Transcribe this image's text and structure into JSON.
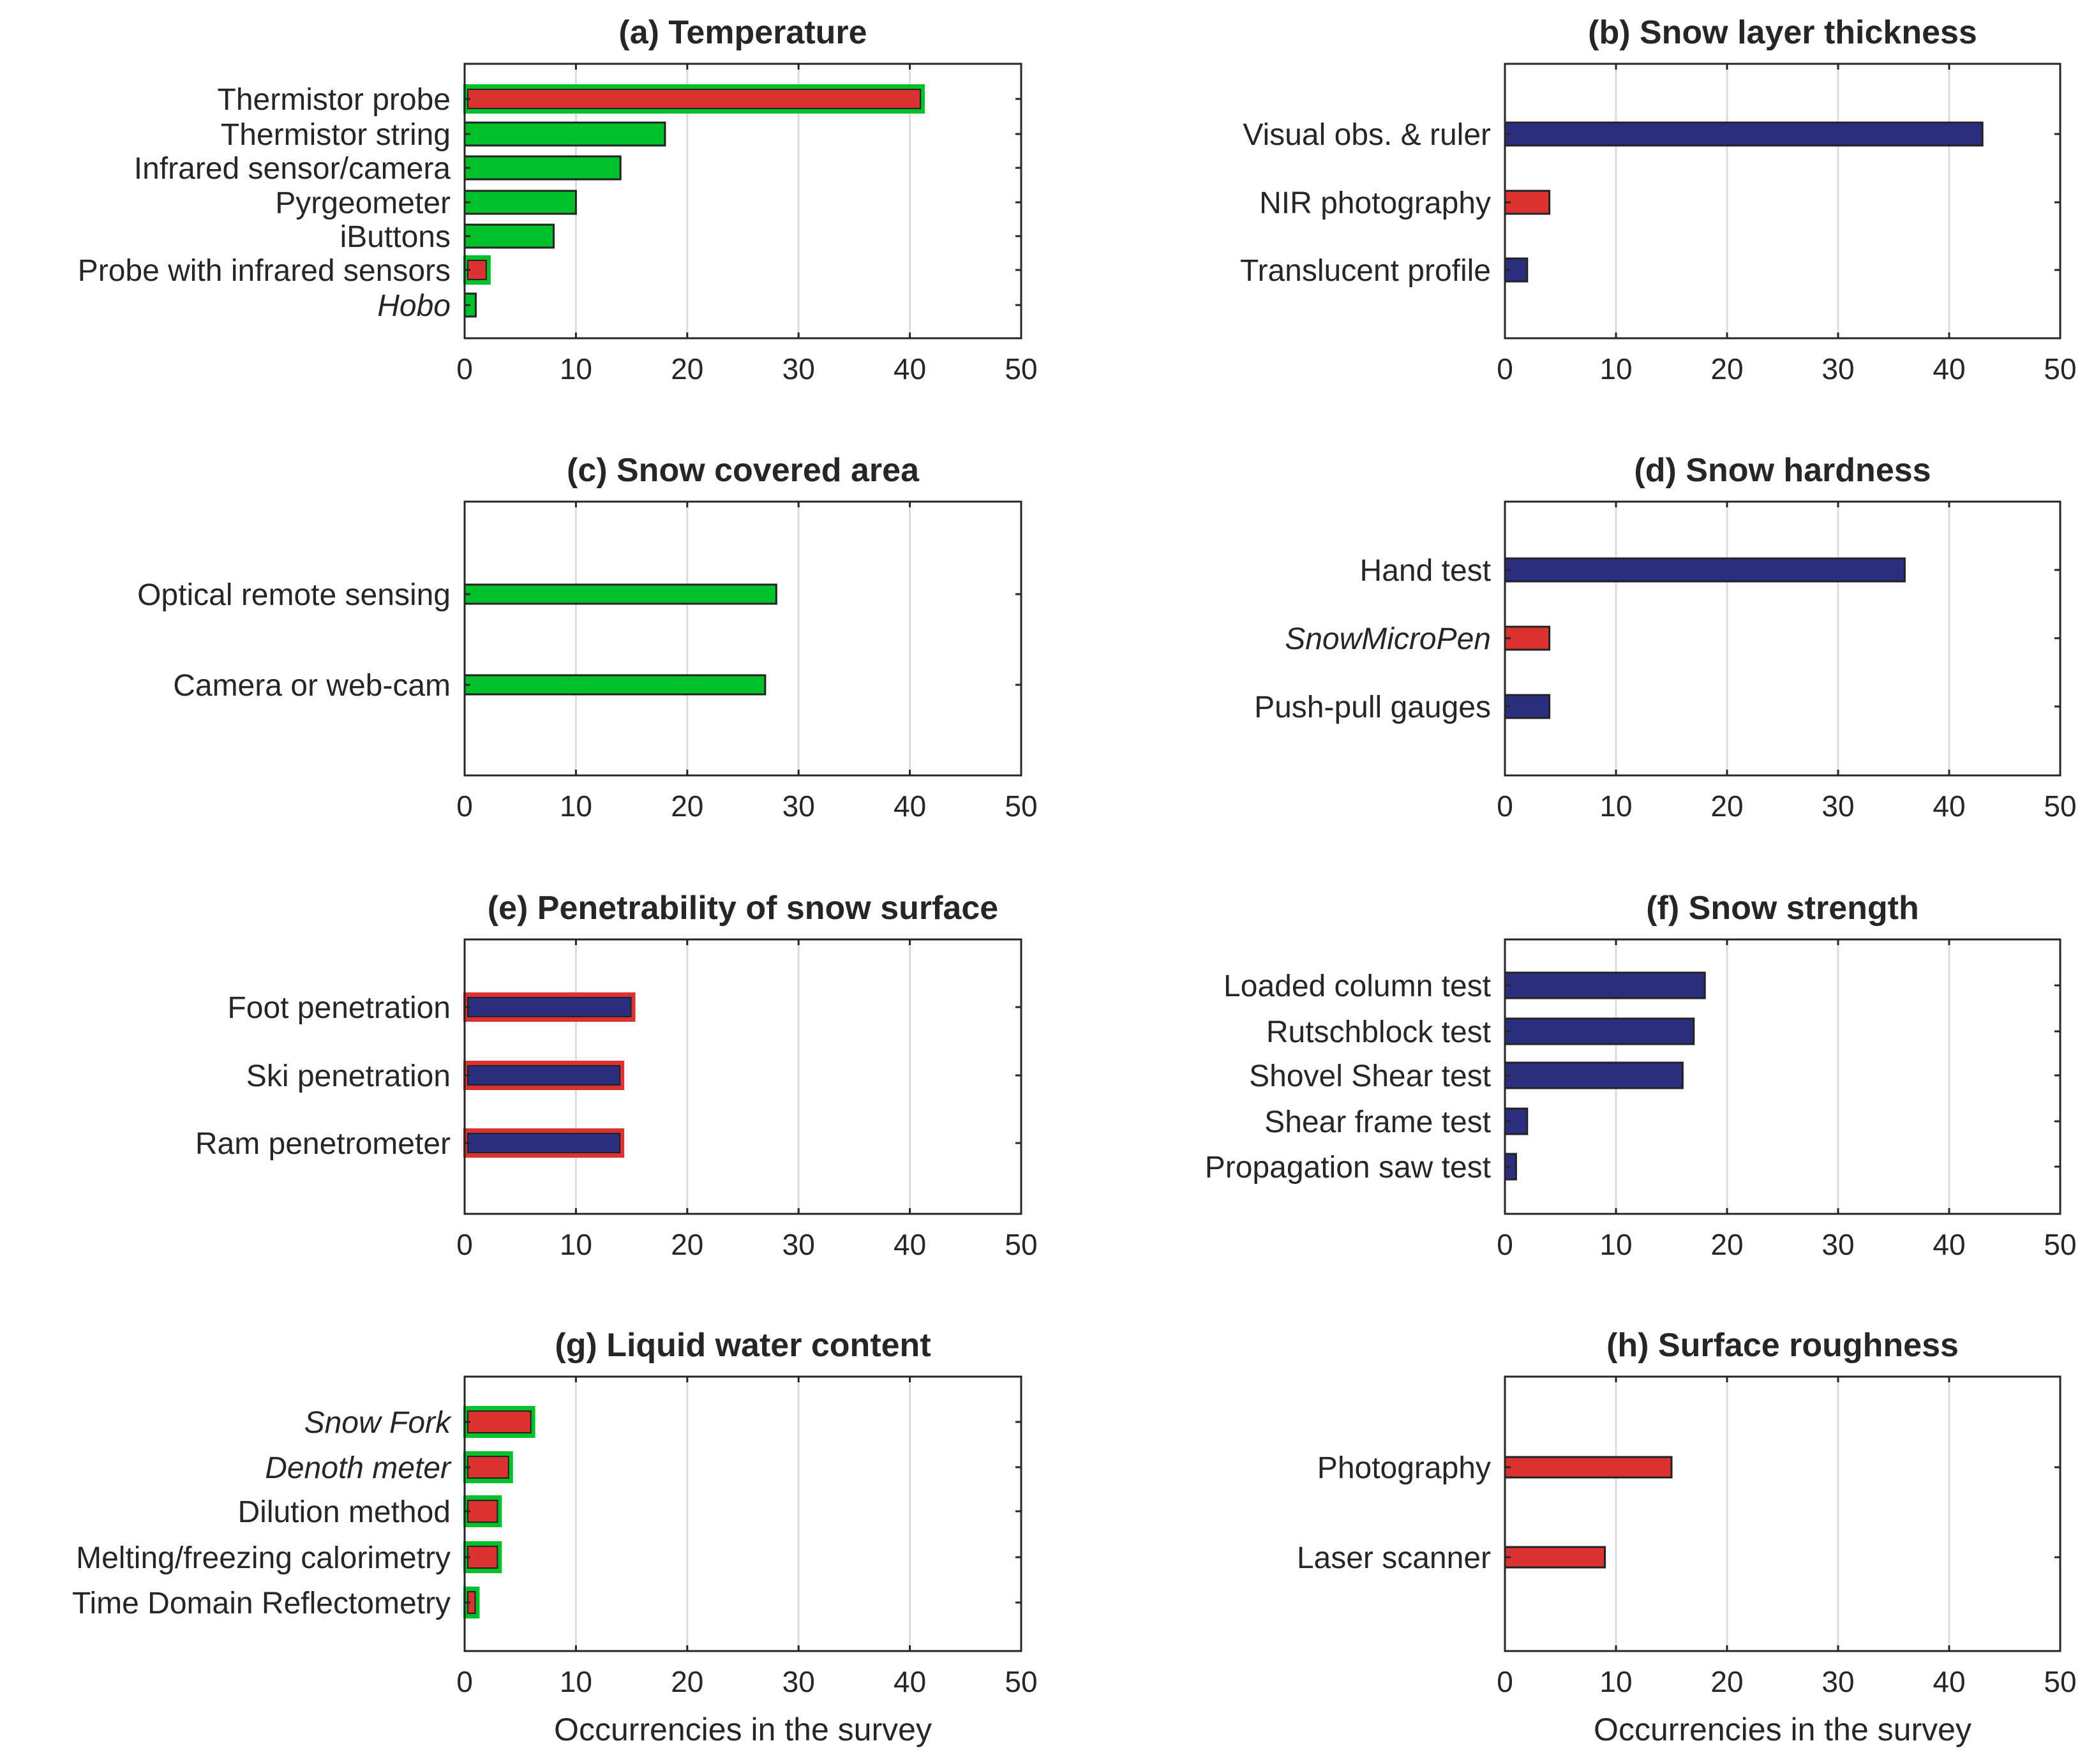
{
  "colors": {
    "green": "#00C12A",
    "red": "#DC3232",
    "navy": "#2B2F80",
    "edge": "#222222",
    "grid": "#DCDCDC",
    "axis": "#262626"
  },
  "chart_data": [
    {
      "id": "a",
      "type": "bar",
      "orientation": "horizontal",
      "title": "(a) Temperature",
      "xlim": [
        0,
        50
      ],
      "xticks": [
        "0",
        "10",
        "20",
        "30",
        "40",
        "50"
      ],
      "xlabel": "",
      "grid": "vertical",
      "bars": [
        {
          "label": "Thermistor probe",
          "value": 41,
          "fill": "red",
          "border": "green",
          "italic": false
        },
        {
          "label": "Thermistor string",
          "value": 18,
          "fill": "green",
          "italic": false
        },
        {
          "label": "Infrared sensor/camera",
          "value": 14,
          "fill": "green",
          "italic": false
        },
        {
          "label": "Pyrgeometer",
          "value": 10,
          "fill": "green",
          "italic": false
        },
        {
          "label": "iButtons",
          "value": 8,
          "fill": "green",
          "italic": false
        },
        {
          "label": "Probe with infrared sensors",
          "value": 2,
          "fill": "red",
          "border": "green",
          "italic": false
        },
        {
          "label": "Hobo",
          "value": 1,
          "fill": "green",
          "italic": true
        }
      ]
    },
    {
      "id": "b",
      "type": "bar",
      "orientation": "horizontal",
      "title": "(b) Snow layer thickness",
      "xlim": [
        0,
        50
      ],
      "xticks": [
        "0",
        "10",
        "20",
        "30",
        "40",
        "50"
      ],
      "xlabel": "",
      "grid": "vertical",
      "bars": [
        {
          "label": "Visual obs. & ruler",
          "value": 43,
          "fill": "navy",
          "italic": false
        },
        {
          "label": "NIR photography",
          "value": 4,
          "fill": "red",
          "italic": false
        },
        {
          "label": "Translucent profile",
          "value": 2,
          "fill": "navy",
          "italic": false
        }
      ]
    },
    {
      "id": "c",
      "type": "bar",
      "orientation": "horizontal",
      "title": "(c) Snow covered area",
      "xlim": [
        0,
        50
      ],
      "xticks": [
        "0",
        "10",
        "20",
        "30",
        "40",
        "50"
      ],
      "xlabel": "",
      "grid": "vertical",
      "bars": [
        {
          "label": "Optical remote sensing",
          "value": 28,
          "fill": "green",
          "italic": false
        },
        {
          "label": "Camera or web-cam",
          "value": 27,
          "fill": "green",
          "italic": false
        }
      ]
    },
    {
      "id": "d",
      "type": "bar",
      "orientation": "horizontal",
      "title": "(d) Snow hardness",
      "xlim": [
        0,
        50
      ],
      "xticks": [
        "0",
        "10",
        "20",
        "30",
        "40",
        "50"
      ],
      "xlabel": "",
      "grid": "vertical",
      "bars": [
        {
          "label": "Hand test",
          "value": 36,
          "fill": "navy",
          "italic": false
        },
        {
          "label": "SnowMicroPen",
          "value": 4,
          "fill": "red",
          "italic": true
        },
        {
          "label": "Push-pull gauges",
          "value": 4,
          "fill": "navy",
          "italic": false
        }
      ]
    },
    {
      "id": "e",
      "type": "bar",
      "orientation": "horizontal",
      "title": "(e) Penetrability of snow surface",
      "xlim": [
        0,
        50
      ],
      "xticks": [
        "0",
        "10",
        "20",
        "30",
        "40",
        "50"
      ],
      "xlabel": "",
      "grid": "vertical",
      "bars": [
        {
          "label": "Foot penetration",
          "value": 15,
          "fill": "navy",
          "border": "red",
          "italic": false
        },
        {
          "label": "Ski penetration",
          "value": 14,
          "fill": "navy",
          "border": "red",
          "italic": false
        },
        {
          "label": "Ram penetrometer",
          "value": 14,
          "fill": "navy",
          "border": "red",
          "italic": false
        }
      ]
    },
    {
      "id": "f",
      "type": "bar",
      "orientation": "horizontal",
      "title": "(f) Snow strength",
      "xlim": [
        0,
        50
      ],
      "xticks": [
        "0",
        "10",
        "20",
        "30",
        "40",
        "50"
      ],
      "xlabel": "",
      "grid": "vertical",
      "bars": [
        {
          "label": "Loaded column test",
          "value": 18,
          "fill": "navy",
          "italic": false
        },
        {
          "label": "Rutschblock test",
          "value": 17,
          "fill": "navy",
          "italic": false
        },
        {
          "label": "Shovel Shear test",
          "value": 16,
          "fill": "navy",
          "italic": false
        },
        {
          "label": "Shear frame test",
          "value": 2,
          "fill": "navy",
          "italic": false
        },
        {
          "label": "Propagation saw test",
          "value": 1,
          "fill": "navy",
          "italic": false
        }
      ]
    },
    {
      "id": "g",
      "type": "bar",
      "orientation": "horizontal",
      "title": "(g) Liquid water content",
      "xlim": [
        0,
        50
      ],
      "xticks": [
        "0",
        "10",
        "20",
        "30",
        "40",
        "50"
      ],
      "xlabel": "Occurrencies in the survey",
      "grid": "vertical",
      "bars": [
        {
          "label": "Snow Fork",
          "value": 6,
          "fill": "red",
          "border": "green",
          "italic": true
        },
        {
          "label": "Denoth meter",
          "value": 4,
          "fill": "red",
          "border": "green",
          "italic": true
        },
        {
          "label": "Dilution method",
          "value": 3,
          "fill": "red",
          "border": "green",
          "italic": false
        },
        {
          "label": "Melting/freezing calorimetry",
          "value": 3,
          "fill": "red",
          "border": "green",
          "italic": false
        },
        {
          "label": "Time Domain Reflectometry",
          "value": 1,
          "fill": "red",
          "border": "green",
          "italic": false
        }
      ]
    },
    {
      "id": "h",
      "type": "bar",
      "orientation": "horizontal",
      "title": "(h) Surface roughness",
      "xlim": [
        0,
        50
      ],
      "xticks": [
        "0",
        "10",
        "20",
        "30",
        "40",
        "50"
      ],
      "xlabel": "Occurrencies in the survey",
      "grid": "vertical",
      "bars": [
        {
          "label": "Photography",
          "value": 15,
          "fill": "red",
          "italic": false
        },
        {
          "label": "Laser scanner",
          "value": 9,
          "fill": "red",
          "italic": false
        }
      ]
    }
  ]
}
